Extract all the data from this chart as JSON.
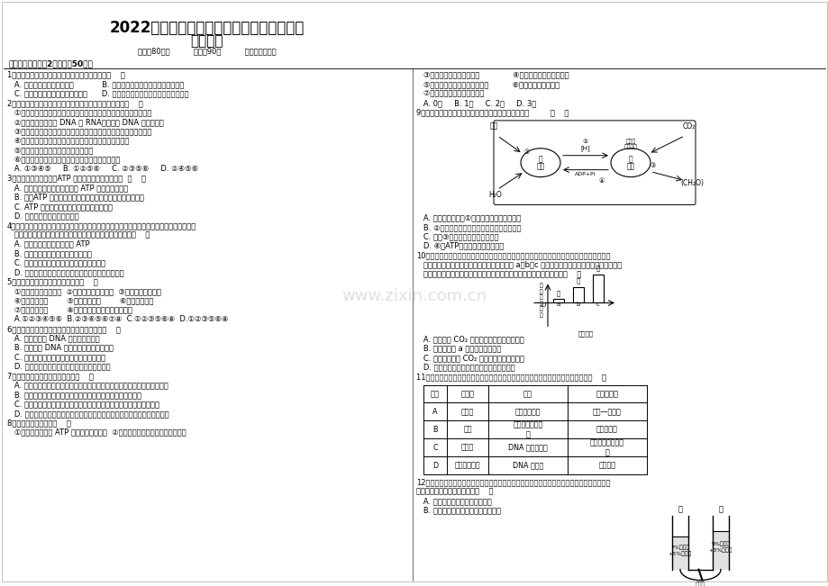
{
  "bg_color": "#ffffff",
  "title1": "2022届高三浏阳一中、攸县一中十一月联考",
  "title2": "生物试卷",
  "info": "时量：80分钟          总分：90分          命题人：谭云旗",
  "section1": "一、选择题（每题2分，共计50分）",
  "watermark": "www.zixin.com.cn",
  "left_col_lines": [
    "1．下列哪一组结构或物质的元素组成是不相同的（    ）",
    "   A. 细菌体内的基因与细胞膜            B. 蓝藻细胞内的核糖体与玉米的细胞壁",
    "   C. 骨骼肌细胞内的线粒体与染色体      D. 植物细胞的细胞壁与动物细胞中的糖原",
    "2．下列关于细胞的物质组成、结构和功能的描述正确的是（    ）",
    "   ①氨基酸脱水缩合形成蛋白质时，产生的水分子约且全都来自于氨基",
    "   ②原核细胞中同时含 DNA 和 RNA，但只有 DNA 是遗传物质",
    "   ③动物细胞的主要能源物质是糖类，植物细胞的主要能源物质是脂肪",
    "   ④溶酶体内含有多种水解酶，能分解年轻、损伤的细胞器",
    "   ⑤动物细胞中的中心体与有丝分裂有关",
    "   ⑥原核细胞与真核细胞的细胞膜的组成成分基本相同",
    "   A. ①③④⑤     B. ①②⑤⑥     C. ②③⑤⑥     D. ②④⑤⑥",
    "3．关于新陈代谢中酶、ATP 的关系，描述不正确的是  （    ）",
    "   A. 酶的种类有物种差异性，而 ATP 却无物种差异性",
    "   B. 酶、ATP 都与新陈代谢密切相关，但两者的合成毫无关系",
    "   C. ATP 是保证新陈代谢正常进行的能量物质",
    "   D. 酶能促使新陈代谢正常进行",
    "4．多糖、蛋白质、核酸等生物大分子都是由很多基本组成单位（单体）连接而成，因而被称为",
    "   单体的多聚体，下列有关单体与多聚体的叙述中，错误的是（    ）",
    "   A. 连接成多聚体体需需要耗 ATP",
    "   B. 单体进入细胞的方式都是被动运输",
    "   C. 有的多聚体在细胞识别时起信息传递作用",
    "   D. 有的多聚体在细胞增殖时平均支配到两个子细胞中",
    "5．年轻的红细胞具有以下哪些特征（    ）",
    "   ①水分别减，细胞萎缩  ②新陈代谢的速度减慢  ③某些酶的活性降低",
    "   ④呼吸速率上升        ⑤色素积累增多        ⑥呼吸速率减慢",
    "   ⑦细胞体积增大        ⑧细胞膜的通透性功能发生转变",
    "   A.①②③④⑤⑥  B.②③④⑤⑥⑦⑧  C.①②③⑤⑥⑧  D.①②③⑤⑥⑧",
    "6．下列关于动物细胞有丝分裂的叙述正确的是（    ）",
    "   A. 分裂间期有 DNA 和中心体的复制",
    "   B. 分裂间期 DNA 含量和染色体组数都加倍",
    "   C. 纺锤体形成于分裂前期，消退于分裂后期",
    "   D. 染色单体形成于分裂前期，消退于分裂后期",
    "7．下列关于试验的叙述正确的是（    ）",
    "   A. 探究淀粉酶对淀粉和麦糖专一性作用时，可用碘液替代斐林试剂进行鉴定",
    "   B. 制作洋葱鳞叶细胞装片时，用酒精对解离后的根尖进行漂洗",
    "   C. 在叶绿色素的提取和分别试验中，用无水乙醇作为有机溶剂分别色素",
    "   D. 选取经低温诱导的洋葱根尖制作临时装片，在显微镜下观看不到联会现象",
    "8．下列说法正确的有（    ）",
    "   ①在线粒体中形成 ATP 时，确定需要氧气  ②没有细胞结构的生物就是原核生物"
  ],
  "right_q8_cont": [
    "   ③全部动物都是需氧型生物              ④有氧呼吸确定在线粒体中",
    "   ⑤全部寄生生物都是厌氧型生物          ⑥核酸成分中含有糖类",
    "   ⑦光合作用确定要在叶绿体中",
    "   A. 0项     B. 1项     C. 2项     D. 3项"
  ],
  "q9_title": "9．下图为绿色植物光合作用图解，以下说法不正确的是         （    ）",
  "q9_answers": [
    "   A. 水的光解发生在①内叶绿体片层结构的薄膜",
    "   B. ②是三碳化合物，在中午高温时，数量削减",
    "   C. 产生③的暗反应需在黑暗中进行",
    "   D. ④是ATP，贮存的能量来自光能"
  ],
  "q10_text": [
    "10．取某种植物生长状态全都的新鲜叶片，用打孔器打出若干圆片，圆片平均分成甲、乙、丙三",
    "   组，每组各置于一个密闭装置内，并分别通入 a、b、c 三种不同强度的光照，其他条件全都，照",
    "   光相同时间后，测得各装置内气体的增量如图所示，下列叙述错误的是（    ）"
  ],
  "q10_answers": [
    "   A. 本试验中 CO₂ 的变化不影响光合作用强度",
    "   B. 光照强度为 a 时，光合作用很弱",
    "   C. 丙组装置内的 CO₂ 含量照光后比照光前低",
    "   D. 该图映了光合作用强度与光照强度的关系"
  ],
  "q11_title": "11、下列关于人类探究遗传奇怪历程中的科学试验方法及技术的叙述中，不正确的是（    ）",
  "table_headers": [
    "选项",
    "科学家",
    "成就",
    "方法及技术"
  ],
  "table_rows": [
    [
      "A",
      "孟德尔",
      "两大遗传定律",
      "假说—演绎法"
    ],
    [
      "B",
      "萨顿",
      "基因位于染色体\n上",
      "类比推理法"
    ],
    [
      "C",
      "艾弗里",
      "DNA 是遗传物质",
      "放射性同位素标记\n法"
    ],
    [
      "D",
      "沃森和克里克",
      "DNA 的结构",
      "模型方法"
    ]
  ],
  "q12_text": [
    "12．右图示集中作用试验装置，甲乙两管的口径相同，半透膜只允许葡萄糖分子通过，淀粉分子",
    "无法通过，当达到集中平衡时（    ）",
    "   A. 甲、乙两管中的液面高度相等",
    "   B. 甲、乙两管中的葡萄糖的浓度相等"
  ]
}
